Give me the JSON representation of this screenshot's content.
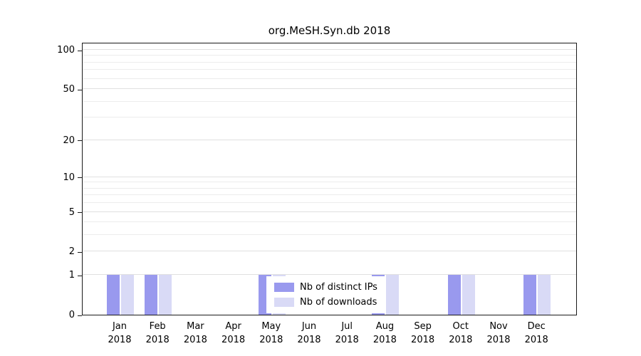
{
  "chart_data": {
    "type": "bar",
    "title": "org.MeSH.Syn.db 2018",
    "categories": [
      "Jan",
      "Feb",
      "Mar",
      "Apr",
      "May",
      "Jun",
      "Jul",
      "Aug",
      "Sep",
      "Oct",
      "Nov",
      "Dec"
    ],
    "year": "2018",
    "series": [
      {
        "name": "Nb of distinct IPs",
        "color": "#9999ee",
        "values": [
          1,
          1,
          0,
          0,
          1,
          0,
          0,
          1,
          0,
          1,
          0,
          1
        ]
      },
      {
        "name": "Nb of downloads",
        "color": "#d9daf6",
        "values": [
          1,
          1,
          0,
          0,
          1,
          0,
          0,
          1,
          0,
          1,
          0,
          1
        ]
      }
    ],
    "yticks": [
      0,
      1,
      2,
      5,
      10,
      20,
      50,
      100
    ],
    "minor_gridlines": [
      1,
      2,
      3,
      4,
      5,
      6,
      7,
      8,
      9,
      10,
      20,
      30,
      40,
      50,
      60,
      70,
      80,
      90,
      100
    ],
    "scale": "log10(v+1)",
    "ylim": [
      0,
      110
    ],
    "grid": true,
    "legend_position": "bottom-center",
    "bar_colors": {
      "distinct_ips": "#9999ee",
      "downloads": "#d9daf6"
    },
    "gridline_color": "#ececec",
    "axis_color": "#1a1a1a"
  }
}
